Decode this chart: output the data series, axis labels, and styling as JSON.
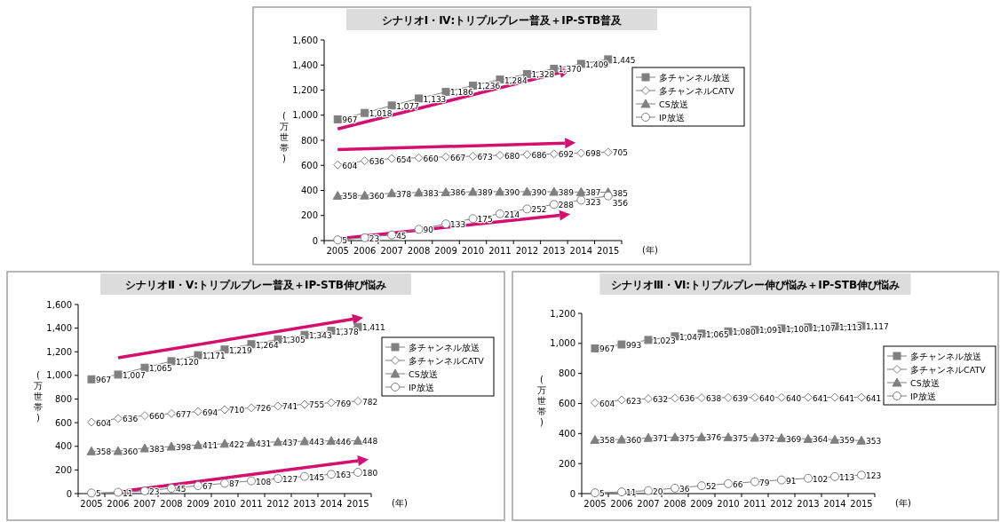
{
  "chart_data": [
    {
      "type": "line",
      "title": "シナリオⅠ・Ⅳ:トリプルプレー普及＋IP-STB普及",
      "ylabel": "(万世帯)",
      "xlabel": "(年)",
      "categories": [
        "2005",
        "2006",
        "2007",
        "2008",
        "2009",
        "2010",
        "2011",
        "2012",
        "2013",
        "2014",
        "2015"
      ],
      "ylim": [
        0,
        1600
      ],
      "yticks": [
        0,
        200,
        400,
        600,
        800,
        {
          "value": 1000,
          "label": "1,000"
        },
        {
          "value": 1200,
          "label": "1,200"
        },
        {
          "value": 1400,
          "label": "1,400"
        },
        {
          "value": 1600,
          "label": "1,600"
        }
      ],
      "grid": false,
      "legend": "right",
      "data_labels": true,
      "series": [
        {
          "name": "多チャンネル放送",
          "color": "#808080",
          "marker": "square",
          "values": [
            967,
            1018,
            1077,
            1133,
            1186,
            1236,
            1284,
            1328,
            1370,
            1409,
            1445
          ],
          "value_labels": [
            "967",
            "1,018",
            "1,077",
            "1,133",
            "1,186",
            "1,236",
            "1,284",
            "1,328",
            "1,370",
            "1,409",
            "1,445"
          ]
        },
        {
          "name": "多チャンネルCATV",
          "color": "#808080",
          "marker": "diamond",
          "values": [
            604,
            636,
            654,
            660,
            667,
            673,
            680,
            686,
            692,
            698,
            705
          ]
        },
        {
          "name": "CS放送",
          "color": "#808080",
          "marker": "triangle",
          "values": [
            358,
            360,
            378,
            383,
            386,
            389,
            390,
            390,
            389,
            387,
            385
          ]
        },
        {
          "name": "IP放送",
          "color": "#808080",
          "marker": "circle",
          "values": [
            5,
            23,
            45,
            90,
            133,
            175,
            214,
            252,
            288,
            323,
            356
          ]
        }
      ]
    },
    {
      "type": "line",
      "title": "シナリオⅡ・Ⅴ:トリプルプレー普及＋IP-STB伸び悩み",
      "ylabel": "(万世帯)",
      "xlabel": "(年)",
      "categories": [
        "2005",
        "2006",
        "2007",
        "2008",
        "2009",
        "2010",
        "2011",
        "2012",
        "2013",
        "2014",
        "2015"
      ],
      "ylim": [
        0,
        1600
      ],
      "yticks": [
        0,
        200,
        400,
        600,
        800,
        {
          "value": 1000,
          "label": "1,000"
        },
        {
          "value": 1200,
          "label": "1,200"
        },
        {
          "value": 1400,
          "label": "1,400"
        },
        {
          "value": 1600,
          "label": "1,600"
        }
      ],
      "grid": false,
      "legend": "right",
      "data_labels": true,
      "series": [
        {
          "name": "多チャンネル放送",
          "color": "#808080",
          "marker": "square",
          "values": [
            967,
            1007,
            1065,
            1120,
            1171,
            1219,
            1264,
            1305,
            1343,
            1378,
            1411
          ],
          "value_labels": [
            "967",
            "1,007",
            "1,065",
            "1,120",
            "1,171",
            "1,219",
            "1,264",
            "1,305",
            "1,343",
            "1,378",
            "1,411"
          ]
        },
        {
          "name": "多チャンネルCATV",
          "color": "#808080",
          "marker": "diamond",
          "values": [
            604,
            636,
            660,
            677,
            694,
            710,
            726,
            741,
            755,
            769,
            782
          ]
        },
        {
          "name": "CS放送",
          "color": "#808080",
          "marker": "triangle",
          "values": [
            358,
            360,
            383,
            398,
            411,
            422,
            431,
            437,
            443,
            446,
            448
          ]
        },
        {
          "name": "IP放送",
          "color": "#808080",
          "marker": "circle",
          "values": [
            5,
            11,
            23,
            45,
            67,
            87,
            108,
            127,
            145,
            163,
            180
          ]
        }
      ]
    },
    {
      "type": "line",
      "title": "シナリオⅢ・Ⅵ:トリプルプレー伸び悩み＋IP-STB伸び悩み",
      "ylabel": "(万世帯)",
      "xlabel": "(年)",
      "categories": [
        "2005",
        "2006",
        "2007",
        "2008",
        "2009",
        "2010",
        "2011",
        "2012",
        "2013",
        "2014",
        "2015"
      ],
      "ylim": [
        0,
        1200
      ],
      "yticks": [
        0,
        200,
        400,
        600,
        800,
        {
          "value": 1000,
          "label": "1,000"
        },
        {
          "value": 1200,
          "label": "1,200"
        }
      ],
      "grid": false,
      "legend": "right",
      "data_labels": true,
      "series": [
        {
          "name": "多チャンネル放送",
          "color": "#808080",
          "marker": "square",
          "values": [
            967,
            993,
            1023,
            1047,
            1065,
            1080,
            1091,
            1100,
            1107,
            1113,
            1117
          ],
          "value_labels": [
            "967",
            "993",
            "1,023",
            "1,047",
            "1,065",
            "1,080",
            "1,091",
            "1,100",
            "1,107",
            "1,113",
            "1,117"
          ]
        },
        {
          "name": "多チャンネルCATV",
          "color": "#808080",
          "marker": "diamond",
          "values": [
            604,
            623,
            632,
            636,
            638,
            639,
            640,
            640,
            641,
            641,
            641
          ]
        },
        {
          "name": "CS放送",
          "color": "#808080",
          "marker": "triangle",
          "values": [
            358,
            360,
            371,
            375,
            376,
            375,
            372,
            369,
            364,
            359,
            353
          ]
        },
        {
          "name": "IP放送",
          "color": "#808080",
          "marker": "circle",
          "values": [
            5,
            11,
            20,
            36,
            52,
            66,
            79,
            91,
            102,
            113,
            123
          ]
        }
      ]
    }
  ]
}
